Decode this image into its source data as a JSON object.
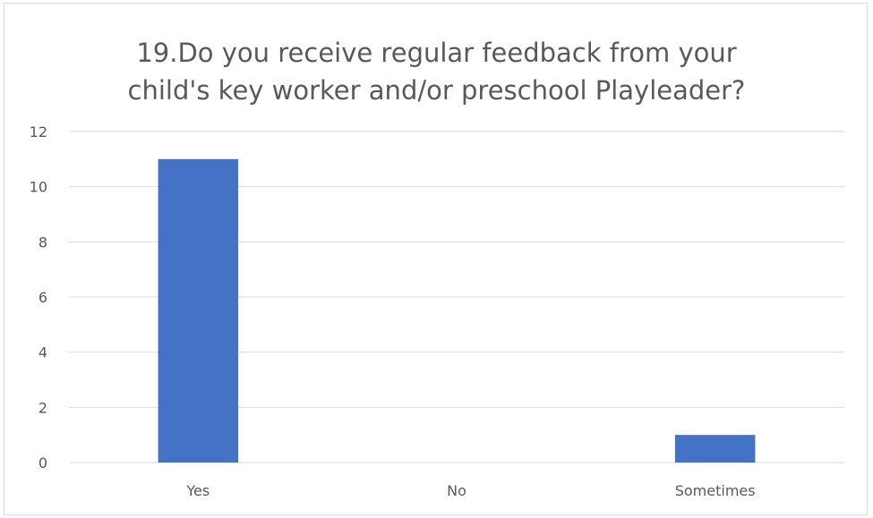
{
  "chart_data": {
    "type": "bar",
    "title_lines": [
      "19.Do you receive regular feedback from your",
      "child's key worker and/or preschool Playleader?"
    ],
    "categories": [
      "Yes",
      "No",
      "Sometimes"
    ],
    "values": [
      11,
      0,
      1
    ],
    "ylim": [
      0,
      12
    ],
    "yticks": [
      0,
      2,
      4,
      6,
      8,
      10,
      12
    ],
    "grid": true,
    "legend": "none",
    "bar_color": "#4472c4",
    "grid_color": "#d9d9d9"
  }
}
